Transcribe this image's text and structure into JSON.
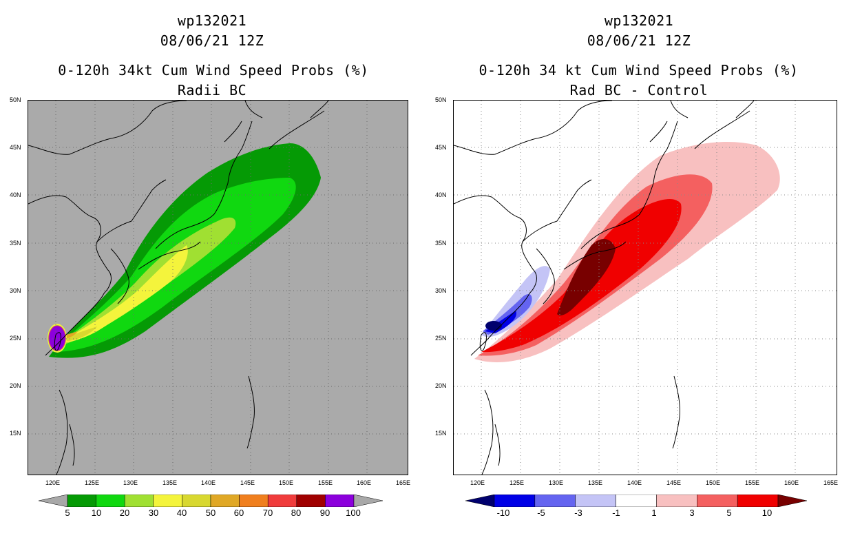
{
  "left_panel": {
    "title_line1": "wp132021",
    "title_line2": "08/06/21 12Z",
    "title_line3": "0-120h 34kt Cum Wind Speed Probs (%)",
    "title_line4": "Radii BC",
    "lat_labels": [
      "50N",
      "45N",
      "40N",
      "35N",
      "30N",
      "25N",
      "20N",
      "15N"
    ],
    "lon_labels": [
      "120E",
      "125E",
      "130E",
      "135E",
      "140E",
      "145E",
      "150E",
      "155E",
      "160E",
      "165E"
    ],
    "colorbar_labels": [
      "5",
      "10",
      "20",
      "30",
      "40",
      "50",
      "60",
      "70",
      "80",
      "90",
      "100"
    ],
    "colorbar_colors": [
      "#a8a8a8",
      "#059a05",
      "#10d810",
      "#a0e032",
      "#f4f43c",
      "#d8d830",
      "#e0a826",
      "#f07f1e",
      "#f03c3c",
      "#a00000",
      "#8c00dc",
      "#a8a8a8"
    ],
    "background_color": "#aaaaaa"
  },
  "right_panel": {
    "title_line1": "wp132021",
    "title_line2": "08/06/21 12Z",
    "title_line3": "0-120h 34 kt Cum Wind Speed Probs (%)",
    "title_line4": "Rad BC - Control",
    "lat_labels": [
      "50N",
      "45N",
      "40N",
      "35N",
      "30N",
      "25N",
      "20N",
      "15N"
    ],
    "lon_labels": [
      "120E",
      "125E",
      "130E",
      "135E",
      "140E",
      "145E",
      "150E",
      "155E",
      "160E",
      "165E"
    ],
    "colorbar_labels": [
      "-10",
      "-5",
      "-3",
      "-1",
      "1",
      "3",
      "5",
      "10"
    ],
    "colorbar_colors": [
      "#00006e",
      "#0000e6",
      "#6464f0",
      "#c4c4f6",
      "#ffffff",
      "#f8c0c0",
      "#f46060",
      "#f00000",
      "#780000"
    ],
    "background_color": "#ffffff"
  }
}
